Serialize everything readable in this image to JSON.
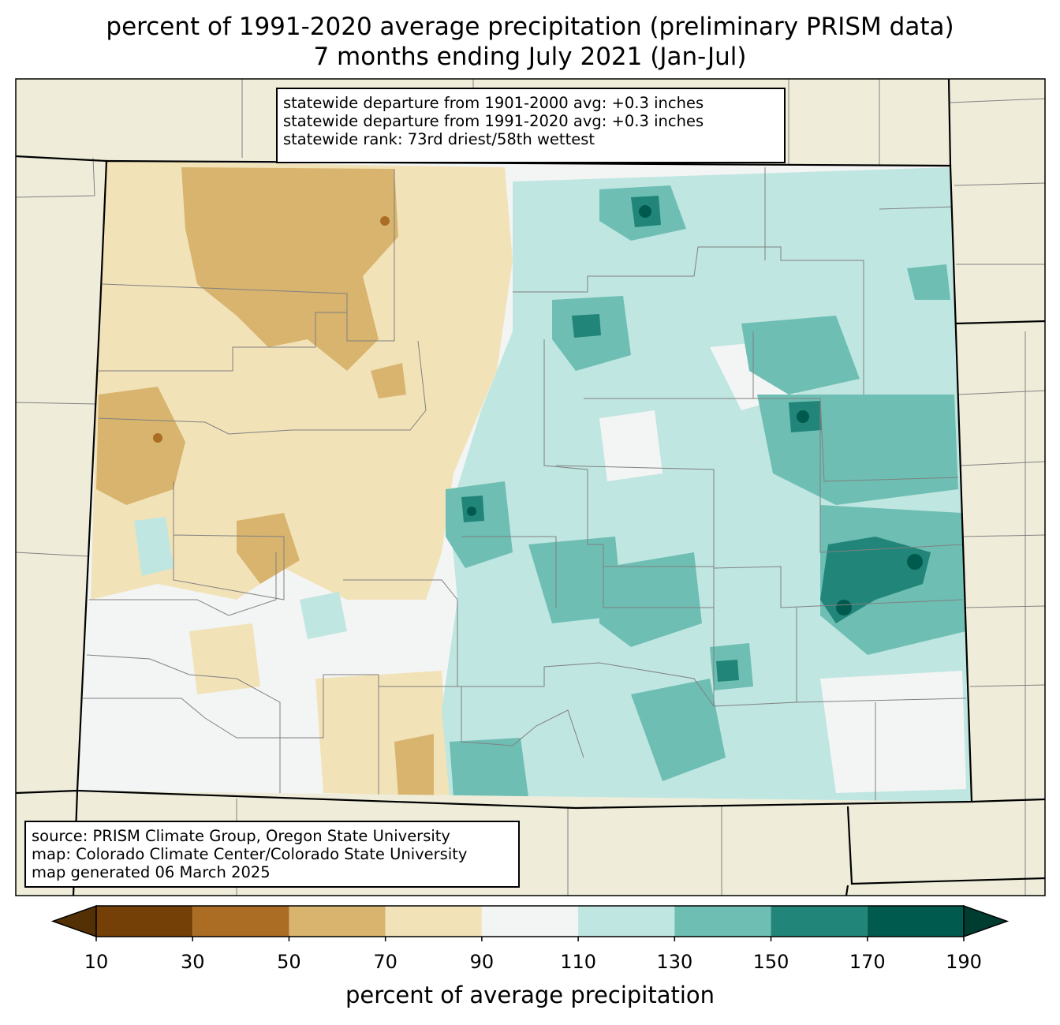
{
  "title": {
    "line1": "percent of 1991-2020 average precipitation (preliminary PRISM data)",
    "line2": "7 months ending July 2021 (Jan-Jul)"
  },
  "stats_box": {
    "lines": [
      "statewide departure from 1901-2000 avg: +0.3 inches",
      "statewide departure from 1991-2020 avg: +0.3 inches",
      "statewide rank: 73rd driest/58th wettest"
    ]
  },
  "source_box": {
    "lines": [
      "source: PRISM Climate Group, Oregon State University",
      "map: Colorado Climate Center/Colorado State University",
      "map generated 06 March 2025"
    ]
  },
  "colorbar": {
    "label": "percent of average precipitation",
    "ticks": [
      "10",
      "30",
      "50",
      "70",
      "90",
      "110",
      "130",
      "150",
      "170",
      "190"
    ],
    "under_color": "#543005",
    "over_color": "#003c30",
    "bins": [
      {
        "from": 10,
        "to": 30,
        "color": "#744008"
      },
      {
        "from": 30,
        "to": 50,
        "color": "#aa6d23"
      },
      {
        "from": 50,
        "to": 70,
        "color": "#d8b46e"
      },
      {
        "from": 70,
        "to": 90,
        "color": "#f2e2b8"
      },
      {
        "from": 90,
        "to": 110,
        "color": "#f3f5f4"
      },
      {
        "from": 110,
        "to": 130,
        "color": "#bfe6e1"
      },
      {
        "from": 130,
        "to": 150,
        "color": "#6ebeb3"
      },
      {
        "from": 150,
        "to": 170,
        "color": "#218579"
      },
      {
        "from": 170,
        "to": 190,
        "color": "#015a4e"
      }
    ]
  },
  "colors": {
    "land_background": "#efedda",
    "state_border": "#000000",
    "county_border": "#808080"
  }
}
